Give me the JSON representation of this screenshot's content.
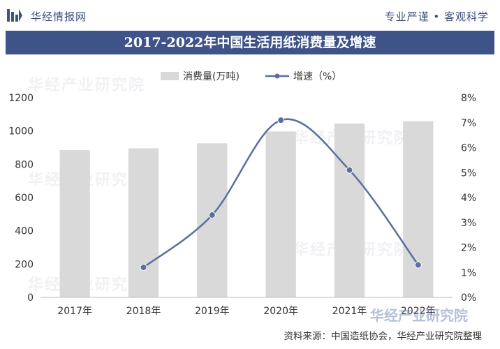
{
  "header": {
    "brand": "华经情报网",
    "slogan": "专业严谨 • 客观科学"
  },
  "title": "2017-2022年中国生活用纸消费量及增速",
  "footer": {
    "source": "资料来源：中国造纸协会，华经产业研究院整理"
  },
  "watermark": {
    "text": "华经产业研究院",
    "corner": "华经产业研究院"
  },
  "colors": {
    "bar": "#d9d9d9",
    "line": "#5b6f9e",
    "title_band": "#3e5387",
    "brand_text": "#3a4e7c"
  },
  "chart_data": {
    "type": "bar",
    "categories": [
      "2017年",
      "2018年",
      "2019年",
      "2020年",
      "2021年",
      "2022年"
    ],
    "series": [
      {
        "name": "消费量(万吨)",
        "type": "bar",
        "axis": "left",
        "values": [
          885,
          896,
          926,
          997,
          1045,
          1059
        ]
      },
      {
        "name": "增速（%）",
        "type": "line",
        "axis": "right",
        "values": [
          null,
          1.2,
          3.3,
          7.1,
          5.1,
          1.3
        ]
      }
    ],
    "y_left": {
      "min": 0,
      "max": 1200,
      "ticks": [
        "0",
        "200",
        "400",
        "600",
        "800",
        "1000",
        "1200"
      ]
    },
    "y_right": {
      "min": 0,
      "max": 8,
      "ticks": [
        "0%",
        "1%",
        "2%",
        "3%",
        "4%",
        "5%",
        "6%",
        "7%",
        "8%"
      ]
    },
    "legend_position": "top-center",
    "grid": false
  }
}
